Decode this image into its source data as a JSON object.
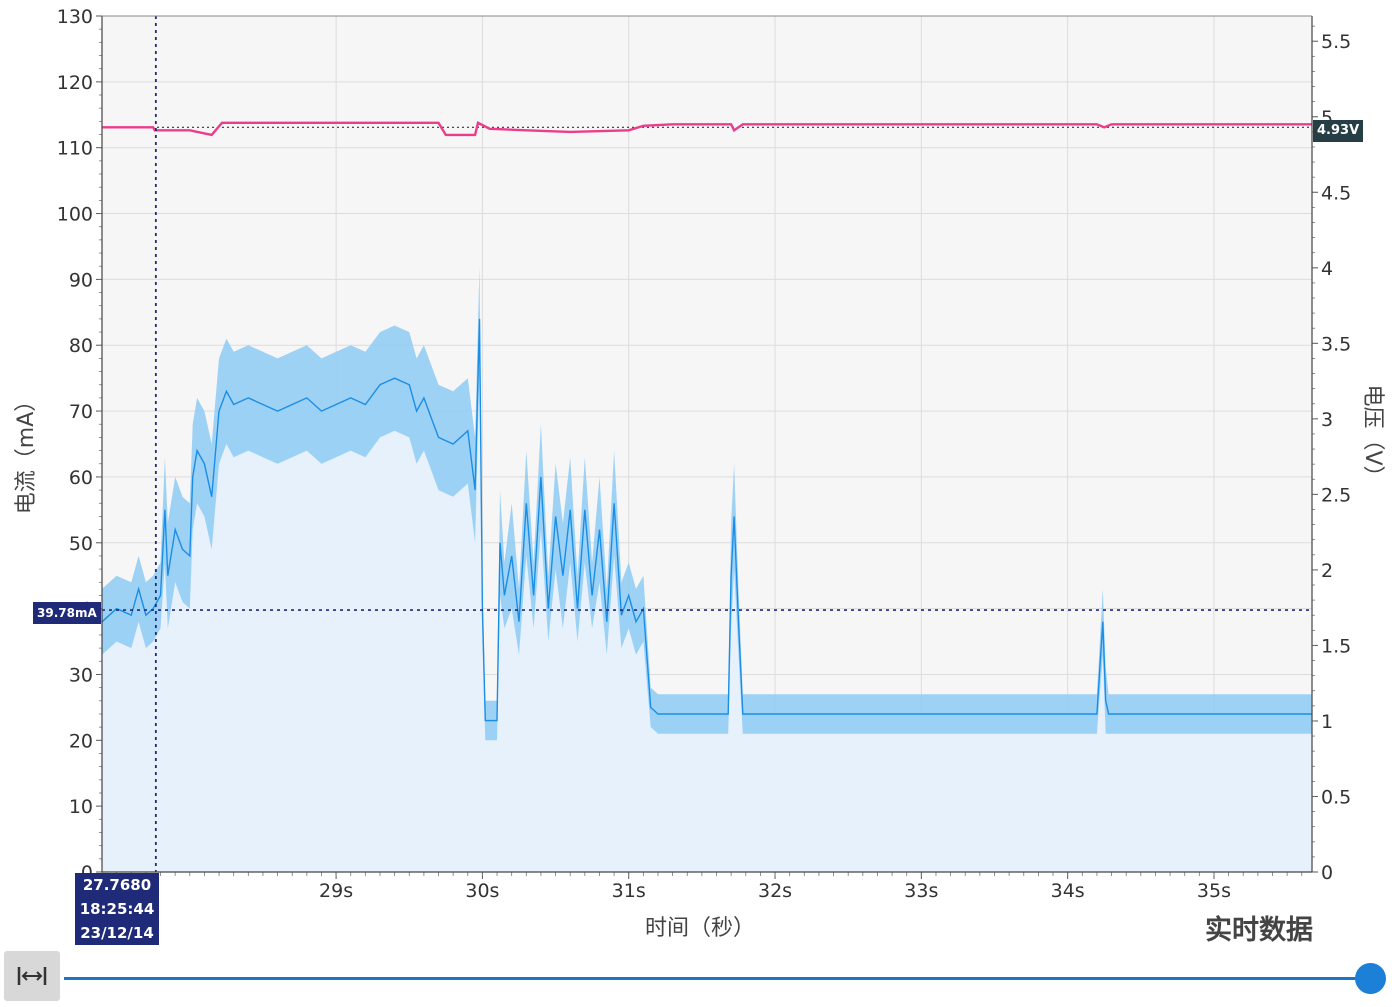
{
  "chart_data": {
    "type": "line",
    "xlabel": "时间（秒）",
    "ylabel_left": "电流（mA）",
    "ylabel_right": "电压（V）",
    "xlim": [
      27.4,
      35.67
    ],
    "ylim_left": [
      0,
      130
    ],
    "ylim_right": [
      0,
      5.667
    ],
    "x_ticks": [
      29,
      30,
      31,
      32,
      33,
      34,
      35
    ],
    "x_tick_labels": [
      "29s",
      "30s",
      "31s",
      "32s",
      "33s",
      "34s",
      "35s"
    ],
    "y_left_ticks": [
      0,
      10,
      20,
      30,
      40,
      50,
      60,
      70,
      80,
      90,
      100,
      110,
      120,
      130
    ],
    "y_right_ticks": [
      0,
      0.5,
      1,
      1.5,
      2,
      2.5,
      3,
      3.5,
      4,
      4.5,
      5,
      5.5
    ],
    "grid": true,
    "current_reference_mA": 39.78,
    "voltage_reference_V": 4.93,
    "series": [
      {
        "name": "电压",
        "axis": "right",
        "color": "#ec3d8c",
        "x": [
          27.4,
          27.75,
          27.76,
          27.8,
          28.0,
          28.15,
          28.22,
          28.5,
          29.0,
          29.5,
          29.7,
          29.75,
          29.95,
          29.97,
          30.05,
          30.3,
          30.6,
          31.0,
          31.1,
          31.3,
          31.7,
          31.72,
          31.78,
          32.0,
          32.5,
          33.0,
          33.5,
          34.0,
          34.2,
          34.25,
          34.3,
          34.6,
          35.0,
          35.67
        ],
        "values": [
          4.93,
          4.93,
          4.91,
          4.91,
          4.91,
          4.88,
          4.96,
          4.96,
          4.96,
          4.96,
          4.96,
          4.88,
          4.88,
          4.96,
          4.92,
          4.91,
          4.9,
          4.91,
          4.94,
          4.95,
          4.95,
          4.91,
          4.95,
          4.95,
          4.95,
          4.95,
          4.95,
          4.95,
          4.95,
          4.93,
          4.95,
          4.95,
          4.95,
          4.95
        ]
      },
      {
        "name": "电流",
        "axis": "left",
        "color": "#1a8ee6",
        "x": [
          27.4,
          27.5,
          27.6,
          27.65,
          27.7,
          27.75,
          27.8,
          27.83,
          27.85,
          27.9,
          27.95,
          28.0,
          28.02,
          28.05,
          28.1,
          28.15,
          28.2,
          28.25,
          28.3,
          28.4,
          28.5,
          28.6,
          28.7,
          28.8,
          28.9,
          29.0,
          29.1,
          29.2,
          29.3,
          29.4,
          29.5,
          29.55,
          29.6,
          29.65,
          29.7,
          29.8,
          29.9,
          29.95,
          29.98,
          30.0,
          30.02,
          30.03,
          30.1,
          30.12,
          30.15,
          30.2,
          30.25,
          30.3,
          30.35,
          30.4,
          30.45,
          30.5,
          30.55,
          30.6,
          30.65,
          30.7,
          30.75,
          30.8,
          30.85,
          30.9,
          30.95,
          31.0,
          31.05,
          31.1,
          31.15,
          31.2,
          31.3,
          31.4,
          31.5,
          31.6,
          31.65,
          31.68,
          31.7,
          31.72,
          31.75,
          31.78,
          31.8,
          32.0,
          32.5,
          33.0,
          33.5,
          34.0,
          34.2,
          34.24,
          34.26,
          34.28,
          34.3,
          34.6,
          35.0,
          35.67
        ],
        "values": [
          38,
          40,
          39,
          43,
          39,
          40,
          42,
          55,
          45,
          52,
          49,
          48,
          60,
          64,
          62,
          57,
          70,
          73,
          71,
          72,
          71,
          70,
          71,
          72,
          70,
          71,
          72,
          71,
          74,
          75,
          74,
          70,
          72,
          69,
          66,
          65,
          67,
          58,
          84,
          40,
          23,
          23,
          23,
          50,
          42,
          48,
          38,
          56,
          42,
          60,
          40,
          54,
          45,
          55,
          40,
          55,
          42,
          52,
          38,
          56,
          39,
          42,
          38,
          40,
          25,
          24,
          24,
          24,
          24,
          24,
          24,
          24,
          45,
          54,
          38,
          24,
          24,
          24,
          24,
          24,
          24,
          24,
          24,
          38,
          26,
          24,
          24,
          24,
          24,
          24
        ]
      }
    ]
  },
  "cursor": {
    "time": "27.7680",
    "clock": "18:25:44",
    "date": "23/12/14",
    "current_label": "39.78mA",
    "voltage_label": "4.93V"
  },
  "status": {
    "mode": "实时数据"
  },
  "controls": {
    "fit_icon": "fit-width-icon",
    "slider_position": 1.0
  },
  "colors": {
    "current": "#1a8ee6",
    "current_band": "#8ecbf5",
    "voltage": "#ec3d8c",
    "cursor": "#1f2a78",
    "plot_bg": "#f6f6f6"
  }
}
